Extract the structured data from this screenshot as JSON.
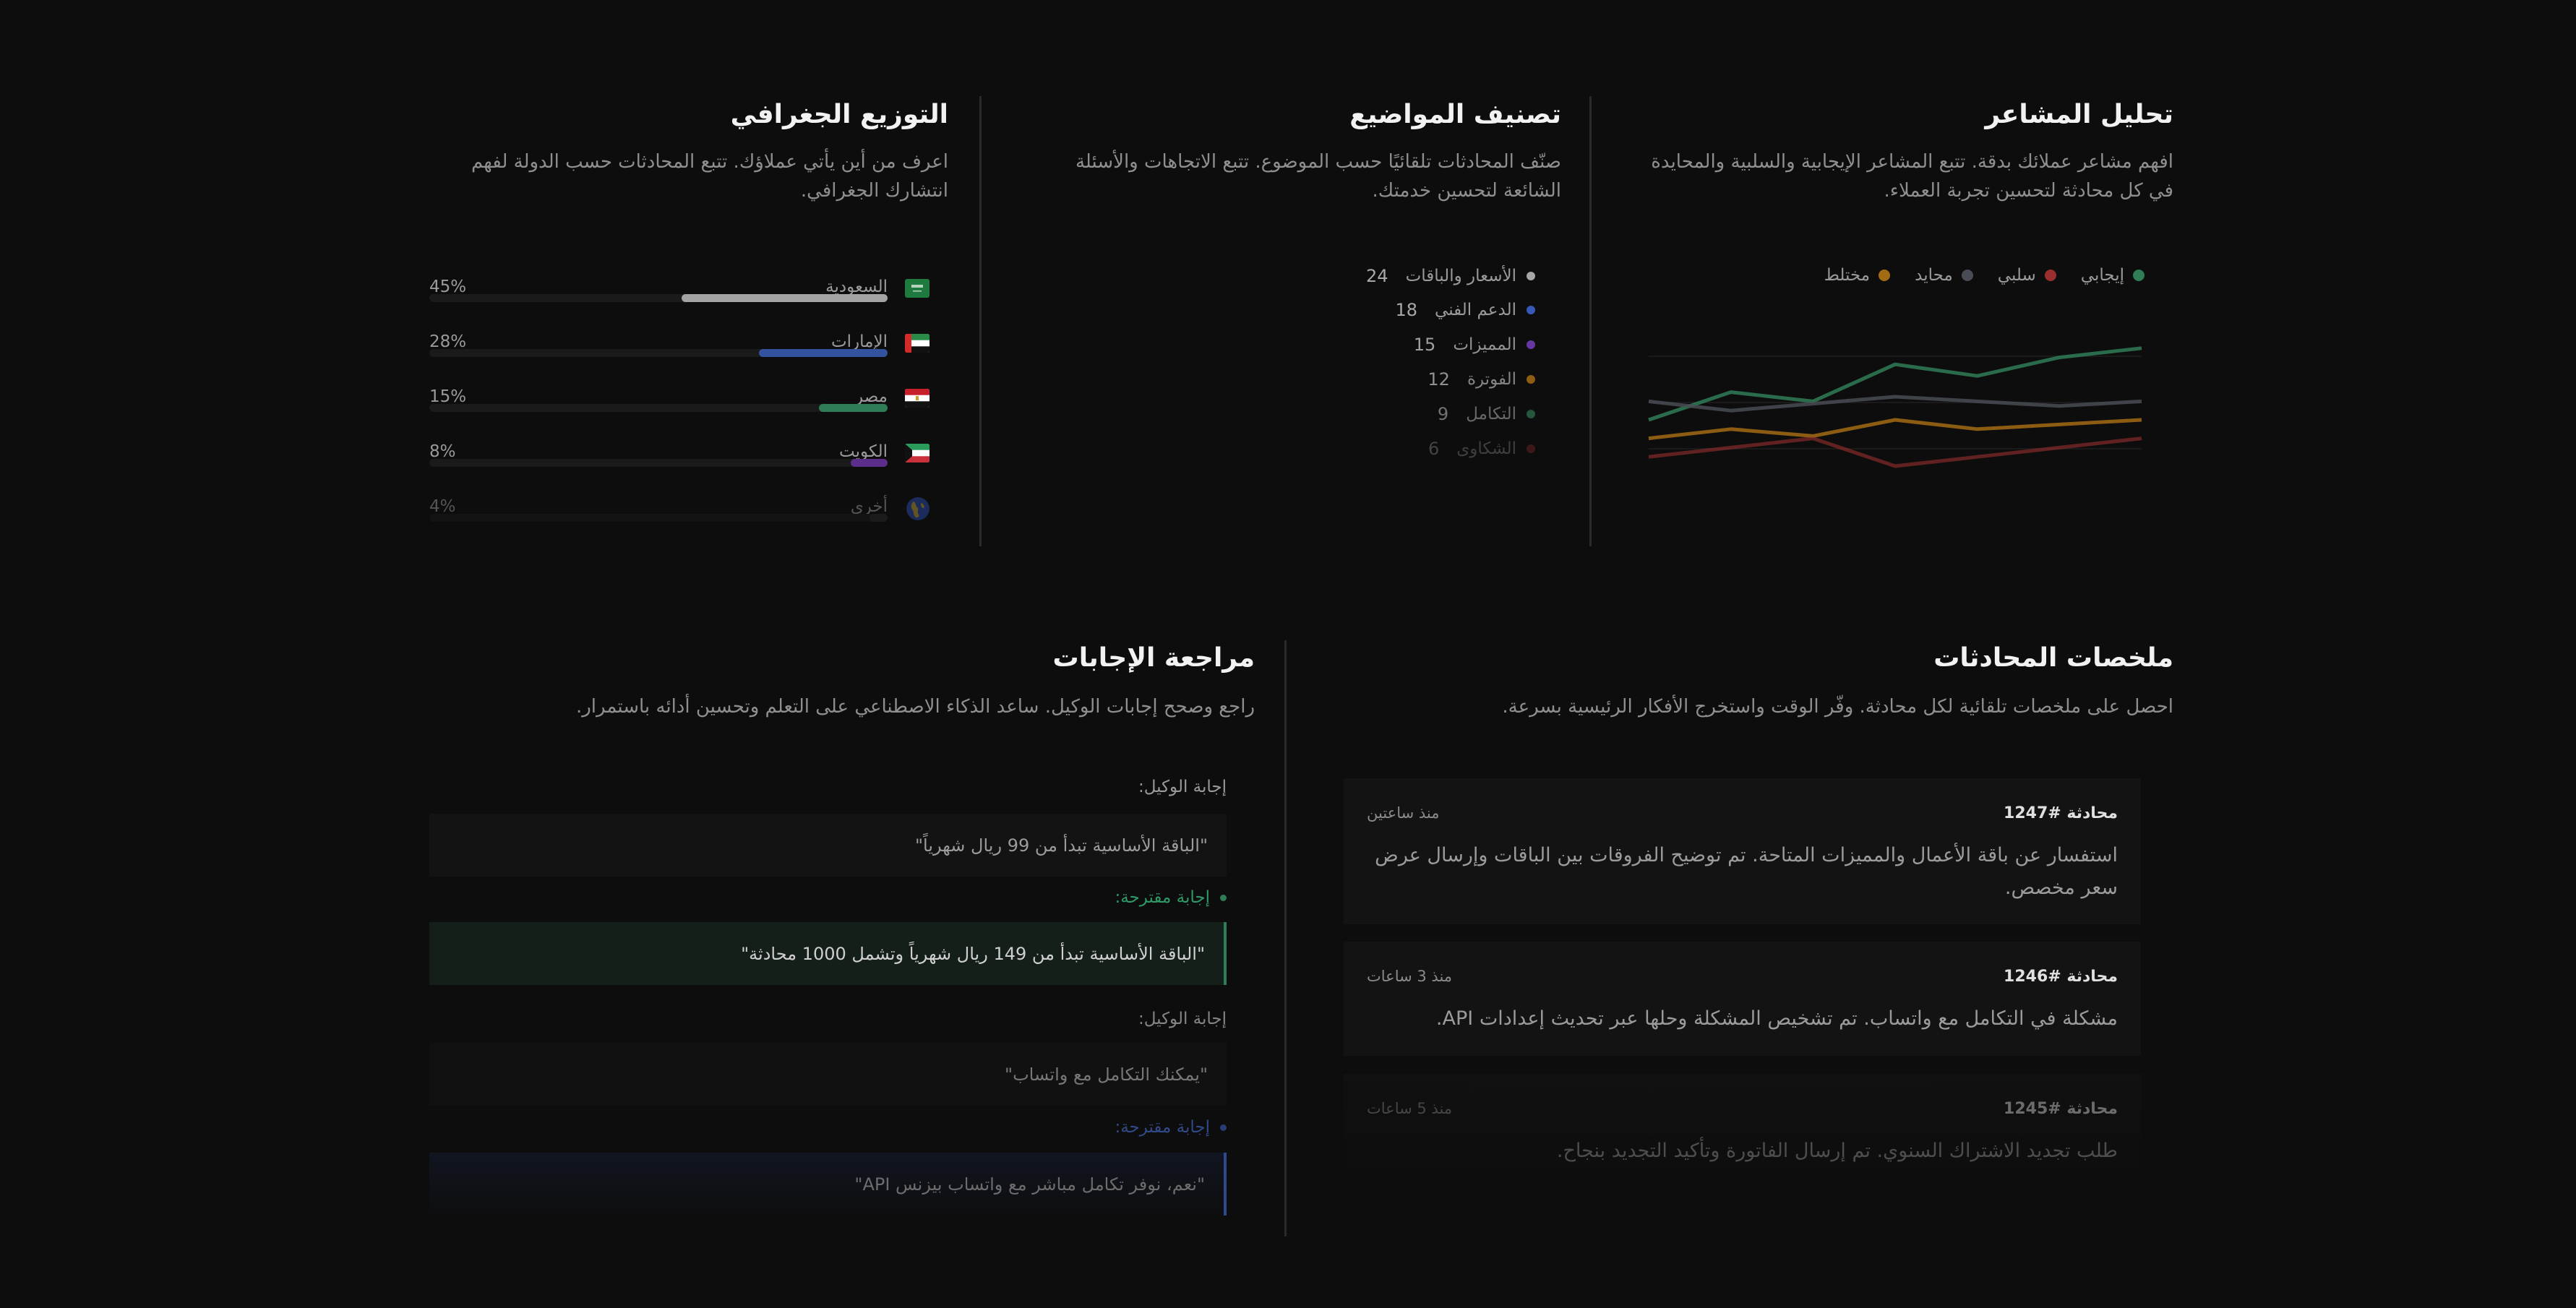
{
  "sentiment": {
    "title": "تحليل المشاعر",
    "description": "افهم مشاعر عملائك بدقة. تتبع المشاعر الإيجابية والسلبية والمحايدة في كل محادثة لتحسين تجربة العملاء.",
    "legend": [
      {
        "label": "إيجابي",
        "color": "#2f7d57"
      },
      {
        "label": "سلبي",
        "color": "#9b2f2f"
      },
      {
        "label": "محايد",
        "color": "#4a4c55"
      },
      {
        "label": "مختلط",
        "color": "#a36b14"
      }
    ]
  },
  "topics": {
    "title": "تصنيف المواضيع",
    "description": "صنّف المحادثات تلقائيًا حسب الموضوع. تتبع الاتجاهات والأسئلة الشائعة لتحسين خدمتك.",
    "items": [
      {
        "label": "الأسعار والباقات",
        "count": "24",
        "color": "#a6a6a6"
      },
      {
        "label": "الدعم الفني",
        "count": "18",
        "color": "#3559b5"
      },
      {
        "label": "المميزات",
        "count": "15",
        "color": "#6b3aa8"
      },
      {
        "label": "الفوترة",
        "count": "12",
        "color": "#a36b14"
      },
      {
        "label": "التكامل",
        "count": "9",
        "color": "#2f7d57"
      },
      {
        "label": "الشكاوى",
        "count": "6",
        "color": "#9b2f2f"
      }
    ]
  },
  "geo": {
    "title": "التوزيع الجغرافي",
    "description": "اعرف من أين يأتي عملاؤك. تتبع المحادثات حسب الدولة لفهم انتشارك الجغرافي.",
    "items": [
      {
        "country": "السعودية",
        "percent_label": "45%",
        "percent": 45,
        "color": "#a3a3a3",
        "flag": "saudi-flag-icon"
      },
      {
        "country": "الإمارات",
        "percent_label": "28%",
        "percent": 28,
        "color": "#3352a0",
        "flag": "uae-flag-icon"
      },
      {
        "country": "مصر",
        "percent_label": "15%",
        "percent": 15,
        "color": "#2f7d57",
        "flag": "egypt-flag-icon"
      },
      {
        "country": "الكويت",
        "percent_label": "8%",
        "percent": 8,
        "color": "#5a2e8a",
        "flag": "kuwait-flag-icon"
      },
      {
        "country": "أخرى",
        "percent_label": "4%",
        "percent": 4,
        "color": "#2a2a2a",
        "flag": "globe-icon"
      }
    ]
  },
  "summaries": {
    "title": "ملخصات المحادثات",
    "description": "احصل على ملخصات تلقائية لكل محادثة. وفّر الوقت واستخرج الأفكار الرئيسية بسرعة.",
    "cards": [
      {
        "id": "محادثة #1247",
        "time": "منذ ساعتين",
        "body": "استفسار عن باقة الأعمال والمميزات المتاحة. تم توضيح الفروقات بين الباقات وإرسال عرض سعر مخصص."
      },
      {
        "id": "محادثة #1246",
        "time": "منذ 3 ساعات",
        "body": "مشكلة في التكامل مع واتساب. تم تشخيص المشكلة وحلها عبر تحديث إعدادات API."
      },
      {
        "id": "محادثة #1245",
        "time": "منذ 5 ساعات",
        "body": "طلب تجديد الاشتراك السنوي. تم إرسال الفاتورة وتأكيد التجديد بنجاح."
      }
    ]
  },
  "review": {
    "title": "مراجعة الإجابات",
    "description": "راجع وصحح إجابات الوكيل. ساعد الذكاء الاصطناعي على التعلم وتحسين أدائه باستمرار.",
    "items": [
      {
        "agent_label": "إجابة الوكيل:",
        "agent_answer": "\"الباقة الأساسية تبدأ من 99 ريال شهرياً\"",
        "suggest_label": "إجابة مقترحة:",
        "suggest_answer": "\"الباقة الأساسية تبدأ من 149 ريال شهرياً وتشمل 1000 محادثة\"",
        "accent": "#2f7d57"
      },
      {
        "agent_label": "إجابة الوكيل:",
        "agent_answer": "\"يمكنك التكامل مع واتساب\"",
        "suggest_label": "إجابة مقترحة:",
        "suggest_answer": "\"نعم، نوفر تكامل مباشر مع واتساب بيزنس API\"",
        "accent": "#2e4a8f"
      }
    ]
  },
  "chart_data": {
    "type": "line",
    "title": "تحليل المشاعر",
    "x": [
      1,
      2,
      3,
      4,
      5,
      6,
      7
    ],
    "xlabel": "",
    "ylabel": "",
    "grid": true,
    "legend_position": "top",
    "series": [
      {
        "name": "إيجابي",
        "color": "#2f7d57",
        "values": [
          45,
          57,
          53,
          69,
          64,
          72,
          76
        ]
      },
      {
        "name": "محايد",
        "color": "#4a4c55",
        "values": [
          53,
          49,
          52,
          55,
          53,
          51,
          53
        ]
      },
      {
        "name": "مختلط",
        "color": "#a36b14",
        "values": [
          37,
          41,
          38,
          45,
          41,
          43,
          45
        ]
      },
      {
        "name": "سلبي",
        "color": "#9b2f2f",
        "values": [
          29,
          33,
          37,
          25,
          29,
          33,
          37
        ]
      }
    ],
    "ylim": [
      0,
      100
    ]
  }
}
